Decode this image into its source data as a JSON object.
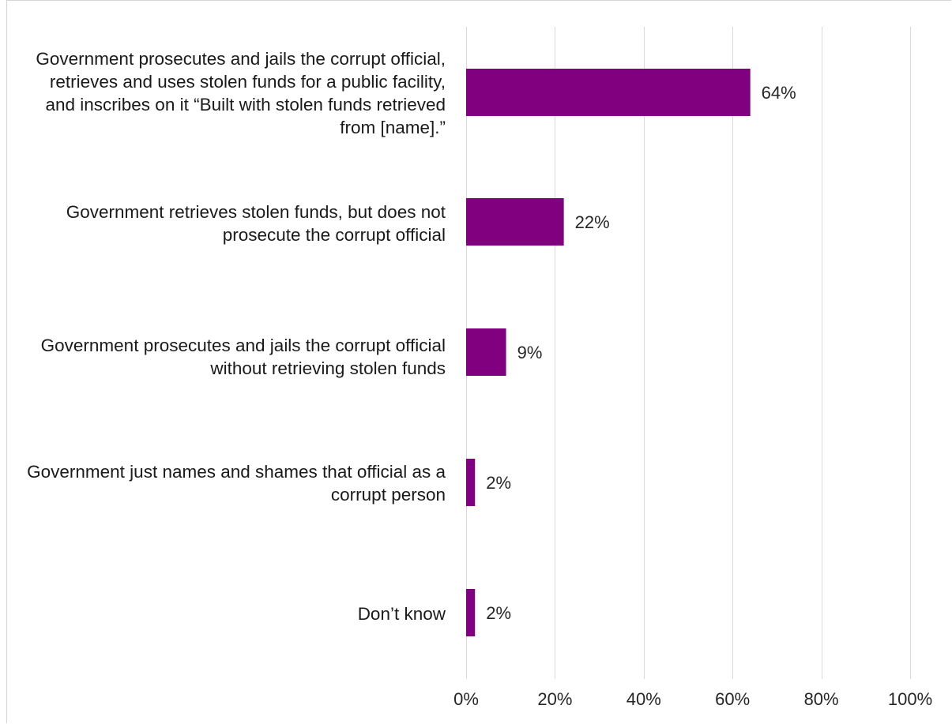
{
  "chart_data": {
    "type": "bar",
    "orientation": "horizontal",
    "categories": [
      "Government prosecutes and jails the corrupt official, retrieves and uses stolen funds for a public facility, and inscribes on it “Built with stolen funds retrieved from [name].”",
      "Government retrieves stolen funds, but does not prosecute the corrupt official",
      "Government prosecutes and jails the corrupt official without retrieving stolen funds",
      "Government just names and shames that official as a corrupt person",
      "Don’t know"
    ],
    "values": [
      64,
      22,
      9,
      2,
      2
    ],
    "value_labels": [
      "64%",
      "22%",
      "9%",
      "2%",
      "2%"
    ],
    "xlim": [
      0,
      100
    ],
    "x_ticks": [
      0,
      20,
      40,
      60,
      80,
      100
    ],
    "x_tick_labels": [
      "0%",
      "20%",
      "40%",
      "60%",
      "80%",
      "100%"
    ],
    "title": "",
    "xlabel": "",
    "ylabel": "",
    "grid": "vertical",
    "legend": "none",
    "bar_color": "#800080"
  }
}
